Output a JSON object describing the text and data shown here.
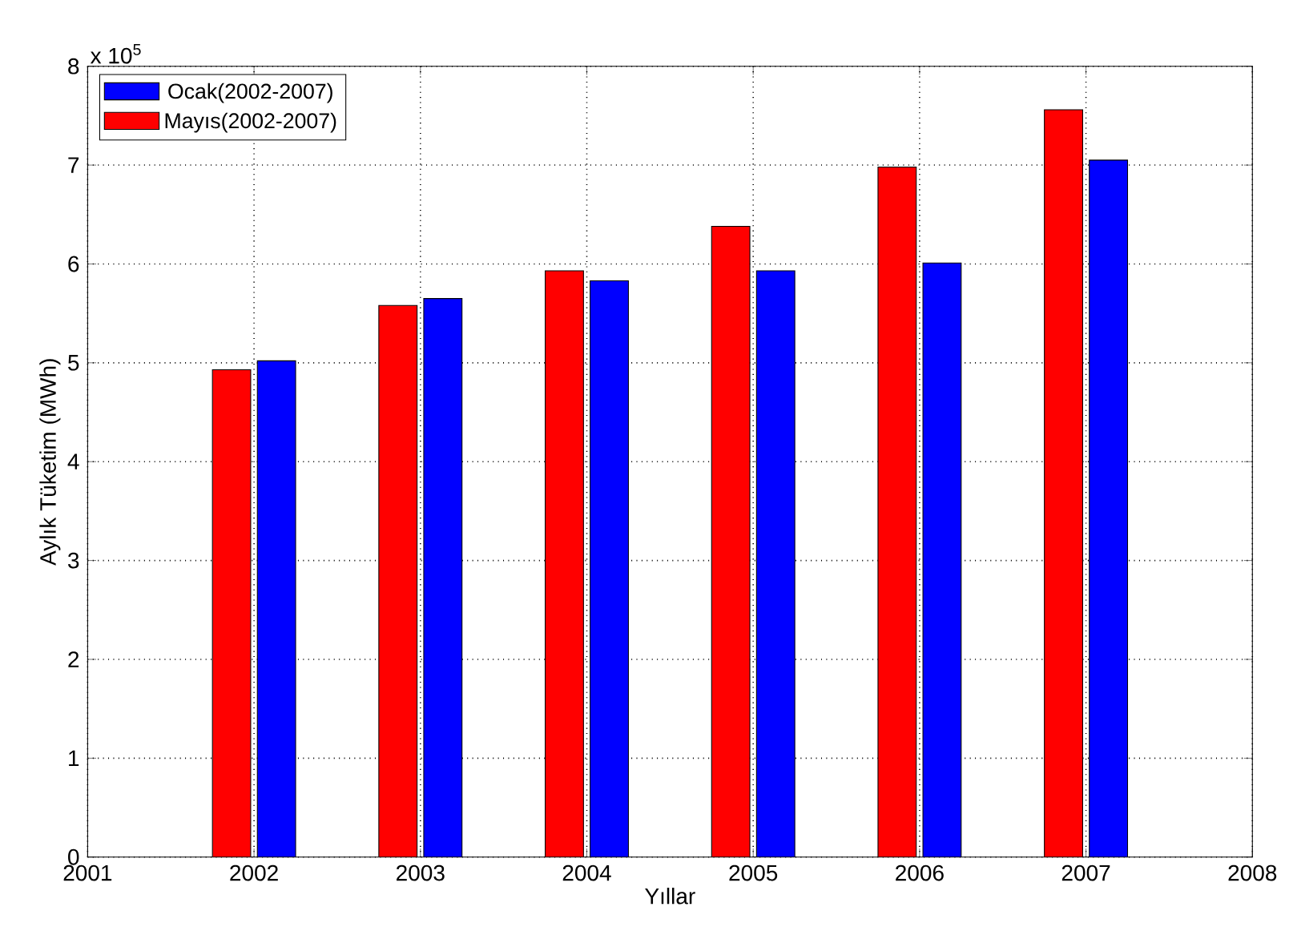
{
  "chart_data": {
    "type": "bar",
    "xlabel": "Yıllar",
    "ylabel": "Aylık Tüketim (MWh)",
    "annotations": [
      "x 10$^{5}$"
    ],
    "x": [
      2002,
      2003,
      2004,
      2005,
      2006,
      2007
    ],
    "series": [
      {
        "name": "Mayıs(2002-2007)",
        "color": "#ff0000",
        "values": [
          4.93,
          5.58,
          5.93,
          6.38,
          6.98,
          7.56
        ]
      },
      {
        "name": "Ocak(2002-2007)",
        "color": "#0000ff",
        "values": [
          5.02,
          5.65,
          5.83,
          5.93,
          6.01,
          7.05
        ]
      }
    ],
    "xlim": [
      2001,
      2008
    ],
    "xticks": [
      2001,
      2002,
      2003,
      2004,
      2005,
      2006,
      2007,
      2008
    ],
    "ylim": [
      0,
      8
    ],
    "yticks": [
      0,
      1,
      2,
      3,
      4,
      5,
      6,
      7,
      8
    ],
    "grid": true,
    "line_style": "dotted",
    "legend": "top left"
  }
}
